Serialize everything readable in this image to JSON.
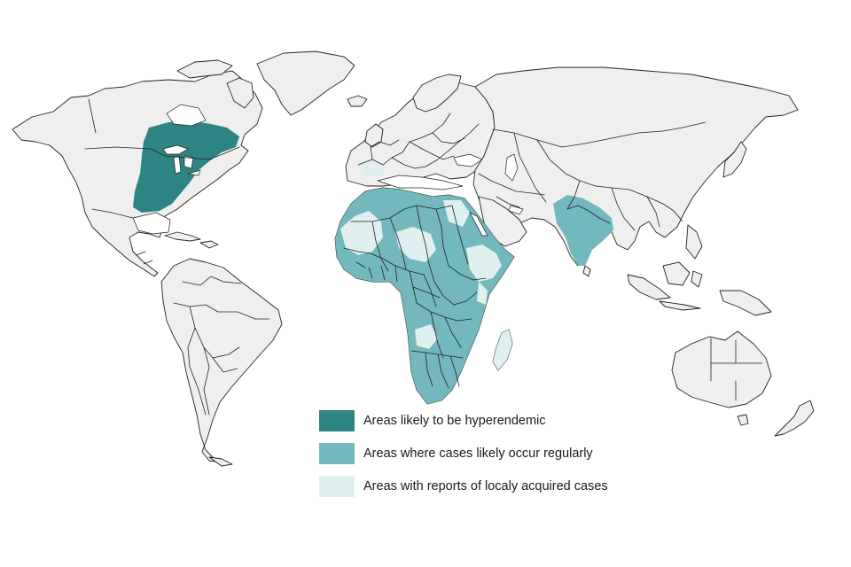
{
  "colors": {
    "hyperendemic": "#2e8383",
    "regular": "#72b8bc",
    "local": "#e0efef",
    "land": "#efefef",
    "border": "#222222"
  },
  "legend": [
    {
      "label": "Areas likely to be hyperendemic",
      "color": "#2e8383"
    },
    {
      "label": "Areas where cases likely occur regularly",
      "color": "#72b8bc"
    },
    {
      "label": "Areas with reports of localy acquired cases",
      "color": "#e0efef"
    }
  ]
}
